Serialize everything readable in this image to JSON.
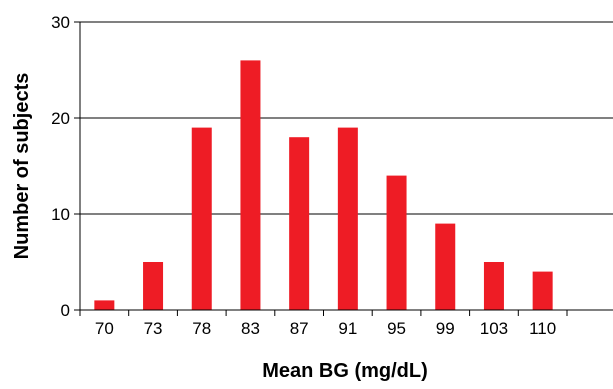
{
  "chart_data": {
    "type": "bar",
    "title": "",
    "xlabel": "Mean BG (mg/dL)",
    "ylabel": "Number of subjects",
    "categories": [
      "70",
      "73",
      "78",
      "83",
      "87",
      "91",
      "95",
      "99",
      "103",
      "110"
    ],
    "values": [
      1,
      5,
      19,
      26,
      18,
      19,
      14,
      9,
      5,
      4
    ],
    "ylim": [
      0,
      30
    ],
    "yticks": [
      "0",
      "10",
      "20",
      "30"
    ],
    "grid": "horizontal",
    "bar_color": "#ee1c25"
  }
}
